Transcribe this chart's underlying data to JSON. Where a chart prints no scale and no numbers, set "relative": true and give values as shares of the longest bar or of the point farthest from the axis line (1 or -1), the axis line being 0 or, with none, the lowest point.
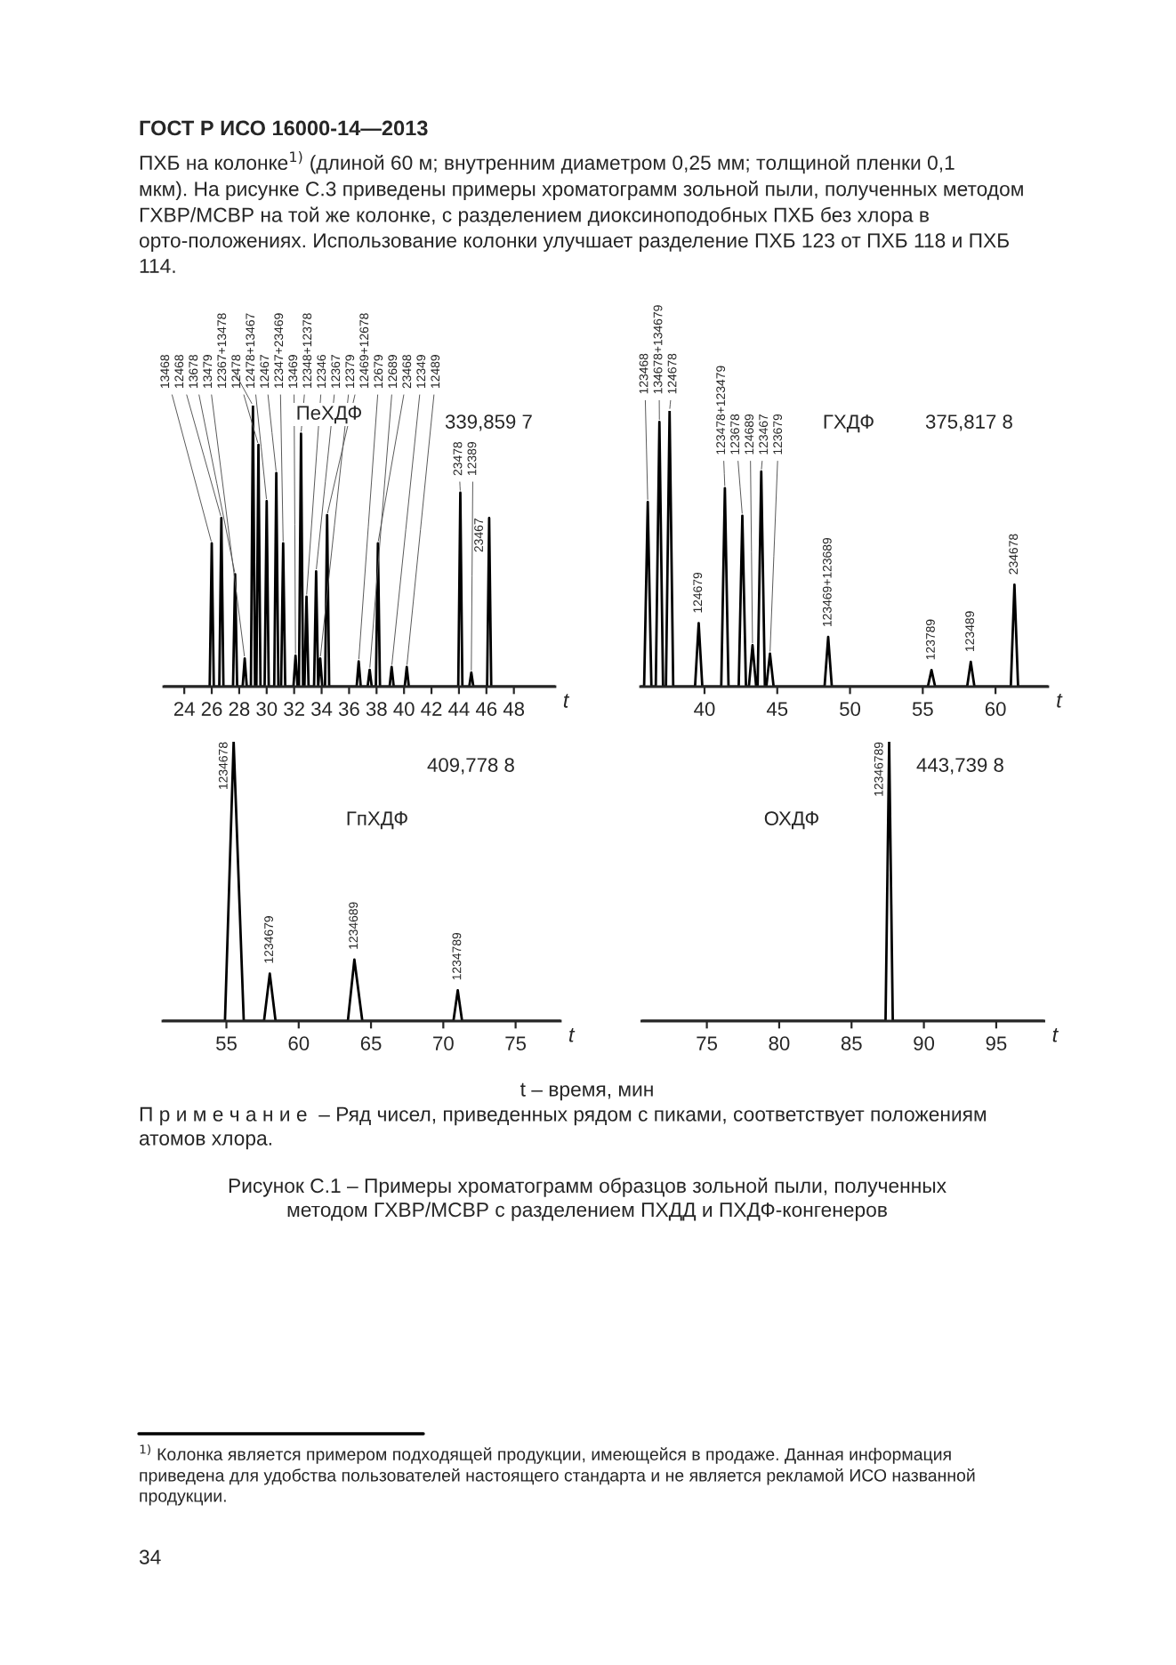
{
  "chart_data": [
    {
      "type": "other",
      "title": "ГОСТ Р ИСО 16000-14—2013",
      "annotations": [
        "ПХБ на колонке$^{1)}$ (длиной 60 м; внутренним диаметром 0,25 мм; толщиной пленки 0,1 мкм). На рисунке С.3 приведены примеры хроматограмм зольной пыли, полученных методом ГХВР/МСВР на той же колонке, с разделением диоксиноподобных ПХБ без хлора в орто-положениях. Использование колонки улучшает разделение ПХБ 123 от ПХБ 118 и ПХБ 114."
      ]
    },
    {
      "type": "line",
      "relative": true,
      "xlabel": "t",
      "xlim": [
        22.5,
        51
      ],
      "xticks": [
        24,
        26,
        28,
        30,
        32,
        34,
        36,
        38,
        40,
        42,
        44,
        46,
        48
      ],
      "series": [
        {
          "color": "#000000",
          "x": [
            22.5,
            25.85,
            26.0,
            26.15,
            26.55,
            26.7,
            26.85,
            27.55,
            27.7,
            27.85,
            28.25,
            28.4,
            28.55,
            28.85,
            29.0,
            29.15,
            29.25,
            29.4,
            29.55,
            29.85,
            30.0,
            30.15,
            30.55,
            30.7,
            30.85,
            31.05,
            31.2,
            31.35,
            31.95,
            32.1,
            32.25,
            32.35,
            32.5,
            32.65,
            32.75,
            32.9,
            33.05,
            33.45,
            33.6,
            33.75,
            33.75,
            33.9,
            34.05,
            34.25,
            34.4,
            34.55,
            36.55,
            36.7,
            36.85,
            37.35,
            37.5,
            37.65,
            37.95,
            38.1,
            38.25,
            38.95,
            39.1,
            39.25,
            40.05,
            40.2,
            40.35,
            43.95,
            44.1,
            44.25,
            44.75,
            44.9,
            45.05,
            46.05,
            46.2,
            46.35,
            51
          ],
          "values": [
            0,
            0,
            0.51,
            0,
            0,
            0.6,
            0,
            0,
            0.4,
            0,
            0,
            0.1,
            0,
            0,
            1,
            0,
            0,
            0.86,
            0,
            0,
            0.66,
            0,
            0,
            0.76,
            0,
            0,
            0.51,
            0,
            0,
            0.11,
            0,
            0,
            0.9,
            0,
            0,
            0.32,
            0,
            0,
            0.41,
            0,
            0,
            0.1,
            0,
            0,
            0.61,
            0,
            0,
            0.09,
            0,
            0,
            0.06,
            0,
            0,
            0.51,
            0,
            0,
            0.07,
            0,
            0,
            0.07,
            0,
            0,
            0.69,
            0,
            0,
            0.05,
            0,
            0,
            0.6,
            0,
            0
          ]
        }
      ],
      "annotations": [
        "ПеХДФ",
        "339,859 7",
        {
          "text": "13468",
          "x": 26.0,
          "y": 0.51
        },
        {
          "text": "12468",
          "x": 26.7,
          "y": 0.6
        },
        {
          "text": "13678",
          "x": 27.7,
          "y": 0.4
        },
        {
          "text": "13479",
          "x": 28.4,
          "y": 0.1
        },
        {
          "text": "12367+13478",
          "x": 29.0,
          "y": 1
        },
        {
          "text": "12478",
          "x": 29.4,
          "y": 0.86
        },
        {
          "text": "12478+13467",
          "x": 30.0,
          "y": 0.66
        },
        {
          "text": "12467",
          "x": 30.7,
          "y": 0.76
        },
        {
          "text": "12347+23469",
          "x": 31.2,
          "y": 0.51
        },
        {
          "text": "13469",
          "x": 32.1,
          "y": 0.11
        },
        {
          "text": "12348+12378",
          "x": 32.5,
          "y": 0.9
        },
        {
          "text": "12346",
          "x": 32.9,
          "y": 0.32
        },
        {
          "text": "12367",
          "x": 33.6,
          "y": 0.41
        },
        {
          "text": "12379",
          "x": 33.9,
          "y": 0.1
        },
        {
          "text": "12469+12678",
          "x": 34.4,
          "y": 0.61
        },
        {
          "text": "12679",
          "x": 36.7,
          "y": 0.09
        },
        {
          "text": "12689",
          "x": 37.5,
          "y": 0.06
        },
        {
          "text": "23468",
          "x": 38.1,
          "y": 0.51
        },
        {
          "text": "12349",
          "x": 39.1,
          "y": 0.07
        },
        {
          "text": "12489",
          "x": 40.2,
          "y": 0.07
        },
        {
          "text": "23478",
          "x": 44.1,
          "y": 0.69
        },
        {
          "text": "12389",
          "x": 44.9,
          "y": 0.05
        },
        {
          "text": "23467",
          "x": 46.2,
          "y": 0.6
        }
      ]
    },
    {
      "type": "line",
      "relative": true,
      "xlabel": "t",
      "xlim": [
        35.6,
        63.6
      ],
      "xticks": [
        40,
        45,
        50,
        55,
        60
      ],
      "series": [
        {
          "color": "#000000",
          "x": [
            35.6,
            35.85,
            36.1,
            36.35,
            36.65,
            36.9,
            37.15,
            37.35,
            37.6,
            37.85,
            39.35,
            39.6,
            39.85,
            41.15,
            41.4,
            41.65,
            42.35,
            42.6,
            42.85,
            43.05,
            43.3,
            43.55,
            43.65,
            43.9,
            44.15,
            44.25,
            44.5,
            44.75,
            48.25,
            48.5,
            48.75,
            55.35,
            55.6,
            55.85,
            58.05,
            58.3,
            58.55,
            61.05,
            61.3,
            61.55,
            63.6
          ],
          "values": [
            0,
            0,
            0.67,
            0,
            0,
            0.96,
            0,
            0,
            1,
            0,
            0,
            0.23,
            0,
            0,
            0.72,
            0,
            0,
            0.62,
            0,
            0,
            0.15,
            0,
            0,
            0.78,
            0,
            0,
            0.12,
            0,
            0,
            0.18,
            0,
            0,
            0.06,
            0,
            0,
            0.09,
            0,
            0,
            0.37,
            0,
            0
          ]
        }
      ],
      "annotations": [
        "ГХДФ",
        "375,817 8",
        {
          "text": "123468",
          "x": 36.1,
          "y": 0.67
        },
        {
          "text": "134678+134679",
          "x": 36.9,
          "y": 0.96
        },
        {
          "text": "124678",
          "x": 37.6,
          "y": 1
        },
        {
          "text": "124679",
          "x": 39.6,
          "y": 0.23
        },
        {
          "text": "123478+123479",
          "x": 41.4,
          "y": 0.72
        },
        {
          "text": "123678",
          "x": 42.6,
          "y": 0.62
        },
        {
          "text": "124689",
          "x": 43.3,
          "y": 0.15
        },
        {
          "text": "123467",
          "x": 43.9,
          "y": 0.78
        },
        {
          "text": "123679",
          "x": 44.5,
          "y": 0.12
        },
        {
          "text": "123469+123689",
          "x": 48.5,
          "y": 0.18
        },
        {
          "text": "123789",
          "x": 55.6,
          "y": 0.06
        },
        {
          "text": "123489",
          "x": 58.3,
          "y": 0.09
        },
        {
          "text": "234678",
          "x": 61.3,
          "y": 0.37
        }
      ]
    },
    {
      "type": "line",
      "relative": true,
      "xlabel": "t",
      "xlim": [
        50.6,
        78.1
      ],
      "xticks": [
        55,
        60,
        65,
        70,
        75
      ],
      "series": [
        {
          "color": "#000000",
          "x": [
            50.6,
            54.9,
            55.5,
            56.2,
            57.6,
            58.0,
            58.4,
            63.4,
            63.85,
            64.4,
            70.7,
            71.0,
            71.3,
            78.1
          ],
          "values": [
            0,
            0,
            1,
            0,
            0,
            0.17,
            0,
            0,
            0.22,
            0,
            0,
            0.11,
            0,
            0
          ]
        }
      ],
      "annotations": [
        "ГпХДФ",
        "409,778 8",
        {
          "text": "1234678",
          "x": 55.5,
          "y": 1
        },
        {
          "text": "1234679",
          "x": 58.0,
          "y": 0.17
        },
        {
          "text": "1234689",
          "x": 63.85,
          "y": 0.22
        },
        {
          "text": "1234789",
          "x": 71.0,
          "y": 0.11
        }
      ]
    },
    {
      "type": "line",
      "relative": true,
      "xlabel": "t",
      "xlim": [
        70.5,
        98.3
      ],
      "xticks": [
        75,
        80,
        85,
        90,
        95
      ],
      "series": [
        {
          "color": "#000000",
          "x": [
            70.5,
            87.35,
            87.6,
            87.85,
            98.3
          ],
          "values": [
            0,
            0,
            1,
            0,
            0
          ]
        }
      ],
      "annotations": [
        "ОХДФ",
        "443,739 8",
        {
          "text": "12346789",
          "x": 87.6,
          "y": 1
        }
      ]
    },
    {
      "type": "other",
      "annotations": [
        "t – время, мин",
        "П р и м е ч а н и е  – Ряд чисел, приведенных рядом с пиками, соответствует положениям атомов хлора.",
        "Рисунок С.1 – Примеры хроматограмм образцов зольной пыли, полученных методом ГХВР/МСВР с разделением ПХДД и ПХДФ-конгенеров",
        "$^{1)}$ Колонка является примером подходящей продукции, имеющейся в продаже. Данная информация приведена для удобства пользователей настоящего стандарта и не является рекламой ИСО названной продукции.",
        "34"
      ]
    }
  ]
}
